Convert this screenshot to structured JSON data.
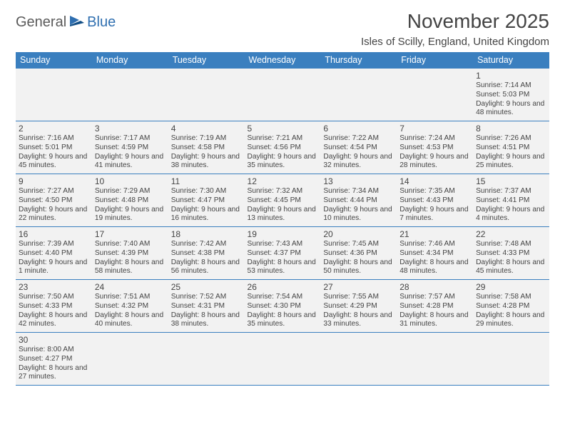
{
  "logo": {
    "part1": "General",
    "part2": "Blue"
  },
  "title": "November 2025",
  "location": "Isles of Scilly, England, United Kingdom",
  "colors": {
    "header_bg": "#3a7fbf",
    "header_text": "#ffffff",
    "cell_bg": "#f2f2f2",
    "border": "#3a7fbf",
    "text": "#444444",
    "logo_gray": "#5a5a5a",
    "logo_blue": "#2f6fb0"
  },
  "weekdays": [
    "Sunday",
    "Monday",
    "Tuesday",
    "Wednesday",
    "Thursday",
    "Friday",
    "Saturday"
  ],
  "weeks": [
    [
      null,
      null,
      null,
      null,
      null,
      null,
      {
        "n": "1",
        "sr": "Sunrise: 7:14 AM",
        "ss": "Sunset: 5:03 PM",
        "dl": "Daylight: 9 hours and 48 minutes."
      }
    ],
    [
      {
        "n": "2",
        "sr": "Sunrise: 7:16 AM",
        "ss": "Sunset: 5:01 PM",
        "dl": "Daylight: 9 hours and 45 minutes."
      },
      {
        "n": "3",
        "sr": "Sunrise: 7:17 AM",
        "ss": "Sunset: 4:59 PM",
        "dl": "Daylight: 9 hours and 41 minutes."
      },
      {
        "n": "4",
        "sr": "Sunrise: 7:19 AM",
        "ss": "Sunset: 4:58 PM",
        "dl": "Daylight: 9 hours and 38 minutes."
      },
      {
        "n": "5",
        "sr": "Sunrise: 7:21 AM",
        "ss": "Sunset: 4:56 PM",
        "dl": "Daylight: 9 hours and 35 minutes."
      },
      {
        "n": "6",
        "sr": "Sunrise: 7:22 AM",
        "ss": "Sunset: 4:54 PM",
        "dl": "Daylight: 9 hours and 32 minutes."
      },
      {
        "n": "7",
        "sr": "Sunrise: 7:24 AM",
        "ss": "Sunset: 4:53 PM",
        "dl": "Daylight: 9 hours and 28 minutes."
      },
      {
        "n": "8",
        "sr": "Sunrise: 7:26 AM",
        "ss": "Sunset: 4:51 PM",
        "dl": "Daylight: 9 hours and 25 minutes."
      }
    ],
    [
      {
        "n": "9",
        "sr": "Sunrise: 7:27 AM",
        "ss": "Sunset: 4:50 PM",
        "dl": "Daylight: 9 hours and 22 minutes."
      },
      {
        "n": "10",
        "sr": "Sunrise: 7:29 AM",
        "ss": "Sunset: 4:48 PM",
        "dl": "Daylight: 9 hours and 19 minutes."
      },
      {
        "n": "11",
        "sr": "Sunrise: 7:30 AM",
        "ss": "Sunset: 4:47 PM",
        "dl": "Daylight: 9 hours and 16 minutes."
      },
      {
        "n": "12",
        "sr": "Sunrise: 7:32 AM",
        "ss": "Sunset: 4:45 PM",
        "dl": "Daylight: 9 hours and 13 minutes."
      },
      {
        "n": "13",
        "sr": "Sunrise: 7:34 AM",
        "ss": "Sunset: 4:44 PM",
        "dl": "Daylight: 9 hours and 10 minutes."
      },
      {
        "n": "14",
        "sr": "Sunrise: 7:35 AM",
        "ss": "Sunset: 4:43 PM",
        "dl": "Daylight: 9 hours and 7 minutes."
      },
      {
        "n": "15",
        "sr": "Sunrise: 7:37 AM",
        "ss": "Sunset: 4:41 PM",
        "dl": "Daylight: 9 hours and 4 minutes."
      }
    ],
    [
      {
        "n": "16",
        "sr": "Sunrise: 7:39 AM",
        "ss": "Sunset: 4:40 PM",
        "dl": "Daylight: 9 hours and 1 minute."
      },
      {
        "n": "17",
        "sr": "Sunrise: 7:40 AM",
        "ss": "Sunset: 4:39 PM",
        "dl": "Daylight: 8 hours and 58 minutes."
      },
      {
        "n": "18",
        "sr": "Sunrise: 7:42 AM",
        "ss": "Sunset: 4:38 PM",
        "dl": "Daylight: 8 hours and 56 minutes."
      },
      {
        "n": "19",
        "sr": "Sunrise: 7:43 AM",
        "ss": "Sunset: 4:37 PM",
        "dl": "Daylight: 8 hours and 53 minutes."
      },
      {
        "n": "20",
        "sr": "Sunrise: 7:45 AM",
        "ss": "Sunset: 4:36 PM",
        "dl": "Daylight: 8 hours and 50 minutes."
      },
      {
        "n": "21",
        "sr": "Sunrise: 7:46 AM",
        "ss": "Sunset: 4:34 PM",
        "dl": "Daylight: 8 hours and 48 minutes."
      },
      {
        "n": "22",
        "sr": "Sunrise: 7:48 AM",
        "ss": "Sunset: 4:33 PM",
        "dl": "Daylight: 8 hours and 45 minutes."
      }
    ],
    [
      {
        "n": "23",
        "sr": "Sunrise: 7:50 AM",
        "ss": "Sunset: 4:33 PM",
        "dl": "Daylight: 8 hours and 42 minutes."
      },
      {
        "n": "24",
        "sr": "Sunrise: 7:51 AM",
        "ss": "Sunset: 4:32 PM",
        "dl": "Daylight: 8 hours and 40 minutes."
      },
      {
        "n": "25",
        "sr": "Sunrise: 7:52 AM",
        "ss": "Sunset: 4:31 PM",
        "dl": "Daylight: 8 hours and 38 minutes."
      },
      {
        "n": "26",
        "sr": "Sunrise: 7:54 AM",
        "ss": "Sunset: 4:30 PM",
        "dl": "Daylight: 8 hours and 35 minutes."
      },
      {
        "n": "27",
        "sr": "Sunrise: 7:55 AM",
        "ss": "Sunset: 4:29 PM",
        "dl": "Daylight: 8 hours and 33 minutes."
      },
      {
        "n": "28",
        "sr": "Sunrise: 7:57 AM",
        "ss": "Sunset: 4:28 PM",
        "dl": "Daylight: 8 hours and 31 minutes."
      },
      {
        "n": "29",
        "sr": "Sunrise: 7:58 AM",
        "ss": "Sunset: 4:28 PM",
        "dl": "Daylight: 8 hours and 29 minutes."
      }
    ],
    [
      {
        "n": "30",
        "sr": "Sunrise: 8:00 AM",
        "ss": "Sunset: 4:27 PM",
        "dl": "Daylight: 8 hours and 27 minutes."
      },
      null,
      null,
      null,
      null,
      null,
      null
    ]
  ]
}
